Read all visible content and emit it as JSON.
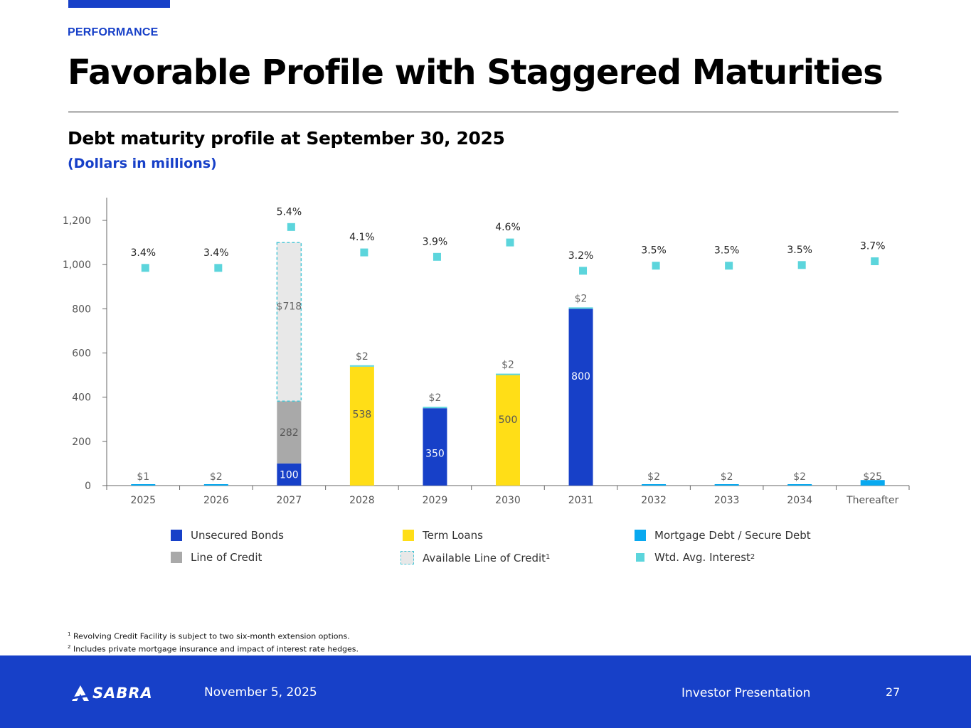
{
  "header": {
    "section_label": "PERFORMANCE",
    "title": "Favorable Profile with Staggered Maturities",
    "subtitle": "Debt maturity profile at September 30, 2025",
    "units_note": "(Dollars in millions)"
  },
  "colors": {
    "accent": "#1740c8",
    "unsecured_bonds": "#1740c8",
    "line_of_credit": "#a9a9a9",
    "term_loans": "#ffde17",
    "available_line_of_credit": "#e8e8e8",
    "available_border": "#47c6d6",
    "mortgage_debt": "#08a9f0",
    "wtd_avg_interest": "#5cd5dc"
  },
  "chart_data": {
    "type": "bar",
    "stacked": true,
    "categories": [
      "2025",
      "2026",
      "2027",
      "2028",
      "2029",
      "2030",
      "2031",
      "2032",
      "2033",
      "2034",
      "Thereafter"
    ],
    "y_ticks": [
      "0",
      "200",
      "400",
      "600",
      "800",
      "1,000",
      "1,200"
    ],
    "ylim": [
      0,
      1200
    ],
    "series": [
      {
        "name": "Unsecured Bonds",
        "values": [
          0,
          0,
          100,
          0,
          350,
          0,
          800,
          0,
          0,
          0,
          0
        ]
      },
      {
        "name": "Line of Credit",
        "values": [
          0,
          0,
          282,
          0,
          0,
          0,
          0,
          0,
          0,
          0,
          0
        ]
      },
      {
        "name": "Term Loans",
        "values": [
          0,
          0,
          0,
          538,
          0,
          500,
          0,
          0,
          0,
          0,
          0
        ]
      },
      {
        "name": "Mortgage Debt / Secure Debt",
        "values": [
          1,
          2,
          0,
          2,
          2,
          2,
          2,
          2,
          2,
          2,
          25
        ]
      },
      {
        "name": "Available Line of Credit",
        "values": [
          0,
          0,
          718,
          0,
          0,
          0,
          0,
          0,
          0,
          0,
          0
        ]
      }
    ],
    "bar_labels": [
      {
        "category": "2025",
        "series": "Unsecured Bonds",
        "text": ""
      },
      {
        "category": "2027",
        "series": "Unsecured Bonds",
        "text": "100"
      },
      {
        "category": "2029",
        "series": "Unsecured Bonds",
        "text": "350"
      },
      {
        "category": "2031",
        "series": "Unsecured Bonds",
        "text": "800"
      },
      {
        "category": "2027",
        "series": "Line of Credit",
        "text": "282"
      },
      {
        "category": "2028",
        "series": "Term Loans",
        "text": "538"
      },
      {
        "category": "2030",
        "series": "Term Loans",
        "text": "500"
      },
      {
        "category": "2027",
        "series": "Available Line of Credit",
        "text": "$718"
      }
    ],
    "mortgage_labels": [
      "$1",
      "$2",
      "",
      "$2",
      "$2",
      "$2",
      "$2",
      "$2",
      "$2",
      "$2",
      "$25"
    ],
    "wtd_avg_interest": {
      "name": "Wtd. Avg. Interest",
      "values_pct": [
        3.4,
        3.4,
        5.4,
        4.1,
        3.9,
        4.6,
        3.2,
        3.5,
        3.5,
        3.5,
        3.7
      ],
      "labels": [
        "3.4%",
        "3.4%",
        "5.4%",
        "4.1%",
        "3.9%",
        "4.6%",
        "3.2%",
        "3.5%",
        "3.5%",
        "3.5%",
        "3.7%"
      ],
      "display_level": [
        985,
        985,
        1170,
        1055,
        1035,
        1100,
        972,
        995,
        995,
        998,
        1015
      ]
    },
    "legend": [
      {
        "label": "Unsecured Bonds",
        "sup": ""
      },
      {
        "label": "Term Loans",
        "sup": ""
      },
      {
        "label": "Mortgage Debt / Secure Debt",
        "sup": ""
      },
      {
        "label": "Line of Credit",
        "sup": ""
      },
      {
        "label": "Available Line of Credit",
        "sup": "1"
      },
      {
        "label": "Wtd. Avg. Interest",
        "sup": "2"
      }
    ],
    "legend_placement": "bottom",
    "grid": false
  },
  "footnotes": {
    "note1_marker": "1",
    "note1": "Revolving Credit Facility is subject to two six-month extension options.",
    "note2_marker": "2",
    "note2": "Includes private mortgage insurance and impact of interest rate hedges."
  },
  "footer": {
    "logo_text": "SABRA",
    "date": "November 5, 2025",
    "document": "Investor Presentation",
    "page_number": "27"
  }
}
